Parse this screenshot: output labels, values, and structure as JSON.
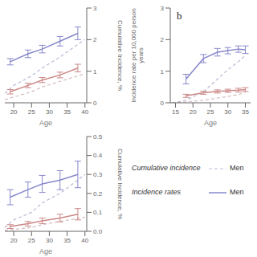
{
  "chart_data": [
    {
      "type": "line",
      "xlabel": "Age",
      "ylabel": "Cumulative Incidence, %",
      "xlim": [
        17.5,
        40.5
      ],
      "xticks": [
        20,
        25,
        30,
        35,
        40
      ],
      "ylim": [
        0,
        3
      ],
      "yticks": [
        0,
        1,
        2,
        3
      ],
      "grid": false,
      "series": [
        {
          "color": "#aaaacc",
          "line_style": "dashed",
          "x": [
            17.5,
            20,
            25,
            28,
            33,
            38,
            40
          ],
          "values": [
            0.3,
            0.55,
            0.85,
            1.1,
            1.45,
            1.85,
            2.0
          ]
        },
        {
          "color": "#ccaaaa",
          "line_style": "dashed",
          "x": [
            17.5,
            20,
            25,
            28,
            33,
            38,
            40
          ],
          "values": [
            0.1,
            0.18,
            0.35,
            0.5,
            0.68,
            0.85,
            0.92
          ]
        },
        {
          "color": "#8888cc",
          "line_style": "solid",
          "x": [
            19,
            24,
            28,
            33,
            38
          ],
          "values": [
            1.3,
            1.55,
            1.7,
            1.95,
            2.2
          ],
          "errors": [
            0.1,
            0.12,
            0.12,
            0.15,
            0.2
          ]
        },
        {
          "color": "#cc8888",
          "line_style": "solid",
          "x": [
            19,
            24,
            28,
            33,
            38
          ],
          "values": [
            0.35,
            0.55,
            0.72,
            0.88,
            1.1
          ],
          "errors": [
            0.07,
            0.07,
            0.08,
            0.09,
            0.12
          ]
        }
      ]
    },
    {
      "type": "line",
      "xlabel": "Age",
      "ylabel": "Incidence rate per 10,000 person years",
      "annotations": [
        "b"
      ],
      "xlim": [
        13.5,
        36.5
      ],
      "xticks": [
        15,
        20,
        25,
        30,
        35
      ],
      "ylim": [
        0,
        3
      ],
      "yticks": [
        0,
        1,
        2,
        3
      ],
      "grid": false,
      "series": [
        {
          "color": "#aaaacc",
          "line_style": "dashed",
          "x": [
            14,
            18,
            23,
            27,
            30,
            33,
            35
          ],
          "values": [
            0.0,
            0.08,
            0.35,
            0.75,
            1.05,
            1.3,
            1.5
          ]
        },
        {
          "color": "#ccaaaa",
          "line_style": "dashed",
          "x": [
            14,
            18,
            23,
            27,
            30,
            33,
            35
          ],
          "values": [
            0.0,
            0.03,
            0.08,
            0.15,
            0.2,
            0.26,
            0.32
          ]
        },
        {
          "color": "#8888cc",
          "line_style": "solid",
          "x": [
            18,
            23,
            27,
            30,
            33,
            35
          ],
          "values": [
            0.75,
            1.4,
            1.6,
            1.65,
            1.7,
            1.68
          ],
          "errors": [
            0.15,
            0.13,
            0.12,
            0.1,
            0.1,
            0.12
          ]
        },
        {
          "color": "#cc8888",
          "line_style": "solid",
          "x": [
            18,
            23,
            27,
            30,
            33,
            35
          ],
          "values": [
            0.22,
            0.32,
            0.36,
            0.38,
            0.4,
            0.42
          ],
          "errors": [
            0.05,
            0.05,
            0.05,
            0.05,
            0.06,
            0.06
          ]
        }
      ]
    },
    {
      "type": "line",
      "xlabel": "Age",
      "ylabel": "Cumulative Incidence, %",
      "xlim": [
        17.5,
        40.5
      ],
      "xticks": [
        20,
        25,
        30,
        35,
        40
      ],
      "ylim": [
        0,
        0.5
      ],
      "yticks": [
        {
          "value": 0,
          "label": "0.0"
        },
        0.1,
        0.2,
        0.3,
        0.4,
        0.5
      ],
      "grid": false,
      "series": [
        {
          "color": "#aaaacc",
          "line_style": "dashed",
          "x": [
            17.5,
            20,
            25,
            28,
            33,
            38,
            40
          ],
          "values": [
            0.02,
            0.06,
            0.1,
            0.15,
            0.2,
            0.27,
            0.3
          ]
        },
        {
          "color": "#ccaaaa",
          "line_style": "dashed",
          "x": [
            17.5,
            20,
            25,
            28,
            33,
            38,
            40
          ],
          "values": [
            0.005,
            0.01,
            0.02,
            0.035,
            0.052,
            0.068,
            0.075
          ]
        },
        {
          "color": "#8888cc",
          "line_style": "solid",
          "x": [
            19,
            24,
            28,
            33,
            38
          ],
          "values": [
            0.18,
            0.22,
            0.25,
            0.27,
            0.3
          ],
          "errors": [
            0.04,
            0.04,
            0.045,
            0.05,
            0.07
          ]
        },
        {
          "color": "#cc8888",
          "line_style": "solid",
          "x": [
            19,
            24,
            28,
            33,
            38
          ],
          "values": [
            0.025,
            0.04,
            0.055,
            0.07,
            0.09
          ],
          "errors": [
            0.01,
            0.012,
            0.015,
            0.02,
            0.03
          ]
        }
      ]
    },
    {
      "type": "legend",
      "annotations": [
        "Cumulative incidence",
        "Incidence rates"
      ],
      "series": [
        {
          "name": "Men",
          "color": "#aaaacc",
          "line_style": "dashed"
        },
        {
          "name": "Men",
          "color": "#8888cc",
          "line_style": "solid"
        }
      ]
    }
  ]
}
